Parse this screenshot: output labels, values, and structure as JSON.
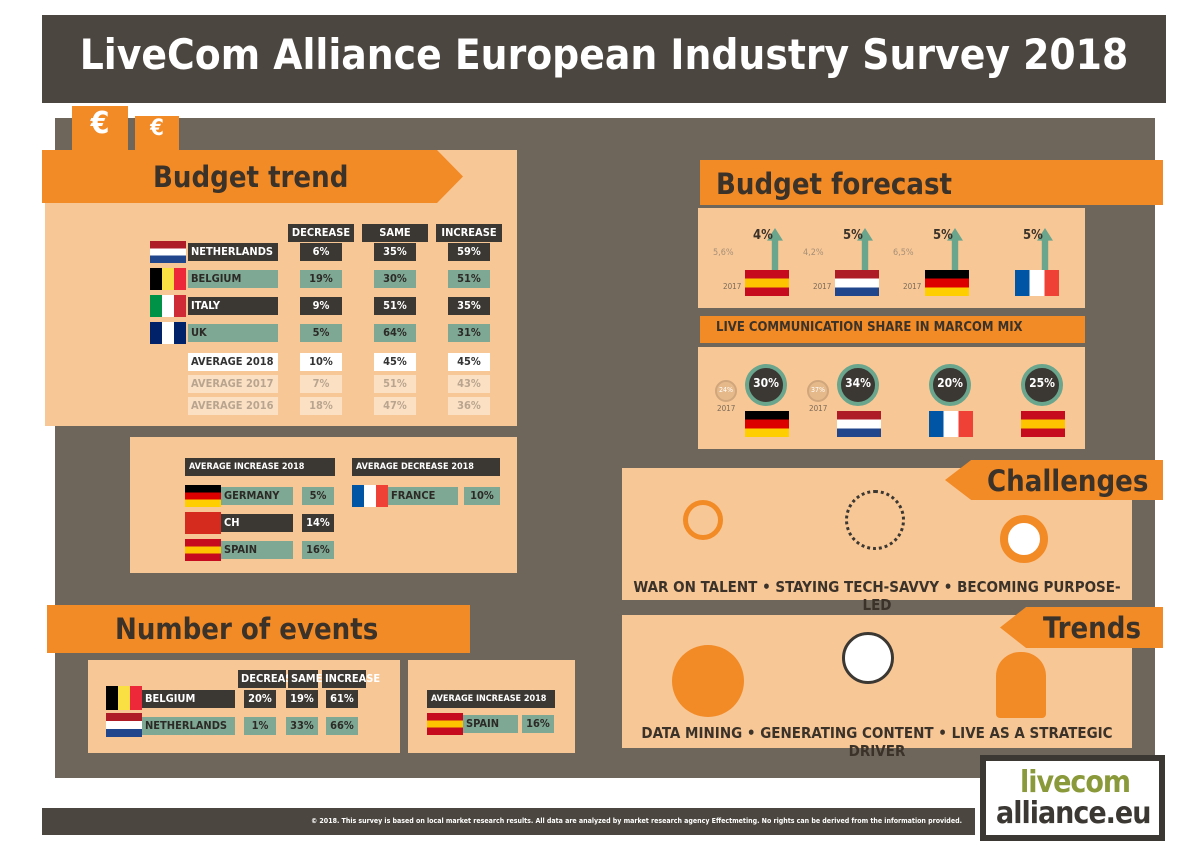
{
  "header": {
    "title": "LiveCom Alliance European Industry Survey 2018"
  },
  "budget_trend": {
    "title": "Budget trend",
    "columns": [
      "DECREASE",
      "SAME",
      "INCREASE"
    ],
    "rows": [
      {
        "country": "NETHERLANDS",
        "values": [
          "6%",
          "35%",
          "59%"
        ]
      },
      {
        "country": "BELGIUM",
        "values": [
          "19%",
          "30%",
          "51%"
        ]
      },
      {
        "country": "ITALY",
        "values": [
          "9%",
          "51%",
          "35%"
        ]
      },
      {
        "country": "UK",
        "values": [
          "5%",
          "64%",
          "31%"
        ]
      }
    ],
    "averages": [
      {
        "label": "AVERAGE 2018",
        "values": [
          "10%",
          "45%",
          "45%"
        ]
      },
      {
        "label": "AVERAGE 2017",
        "values": [
          "7%",
          "51%",
          "43%"
        ]
      },
      {
        "label": "AVERAGE 2016",
        "values": [
          "18%",
          "47%",
          "36%"
        ]
      }
    ],
    "average_increase": {
      "title": "AVERAGE INCREASE 2018",
      "rows": [
        {
          "country": "GERMANY",
          "value": "5%"
        },
        {
          "country": "CH",
          "value": "14%"
        },
        {
          "country": "SPAIN",
          "value": "16%"
        }
      ]
    },
    "average_decrease": {
      "title": "AVERAGE DECREASE 2018",
      "rows": [
        {
          "country": "FRANCE",
          "value": "10%"
        }
      ]
    }
  },
  "number_of_events": {
    "title": "Number of events",
    "columns": [
      "DECREASE",
      "SAME",
      "INCREASE"
    ],
    "rows": [
      {
        "country": "BELGIUM",
        "values": [
          "20%",
          "19%",
          "61%"
        ]
      },
      {
        "country": "NETHERLANDS",
        "values": [
          "1%",
          "33%",
          "66%"
        ]
      }
    ],
    "average_increase": {
      "title": "AVERAGE INCREASE 2018",
      "rows": [
        {
          "country": "SPAIN",
          "value": "16%"
        }
      ]
    }
  },
  "budget_forecast": {
    "title": "Budget forecast",
    "items": [
      {
        "value": "4%",
        "previous": "5,6%",
        "previous_year": "2017"
      },
      {
        "value": "5%",
        "previous": "4,2%",
        "previous_year": "2017"
      },
      {
        "value": "5%",
        "previous": "6,5%",
        "previous_year": "2017"
      },
      {
        "value": "5%"
      }
    ]
  },
  "live_share": {
    "title": "LIVE COMMUNICATION SHARE IN MARCOM MIX",
    "items": [
      {
        "value": "30%",
        "previous": "24%",
        "previous_year": "2017"
      },
      {
        "value": "34%",
        "previous": "37%",
        "previous_year": "2017"
      },
      {
        "value": "20%"
      },
      {
        "value": "25%"
      }
    ]
  },
  "challenges": {
    "title": "Challenges",
    "text": "WAR ON TALENT • STAYING TECH-SAVVY • BECOMING PURPOSE-LED"
  },
  "trends": {
    "title": "Trends",
    "text": "DATA MINING  • GENERATING CONTENT • LIVE AS A STRATEGIC DRIVER"
  },
  "footer": {
    "text": "© 2018. This survey is based on local market research results. All data are analyzed by market research agency Effectmeting. No rights can be derived from the information provided."
  },
  "logo": {
    "line1": "livecom",
    "line2": "alliance.eu"
  }
}
